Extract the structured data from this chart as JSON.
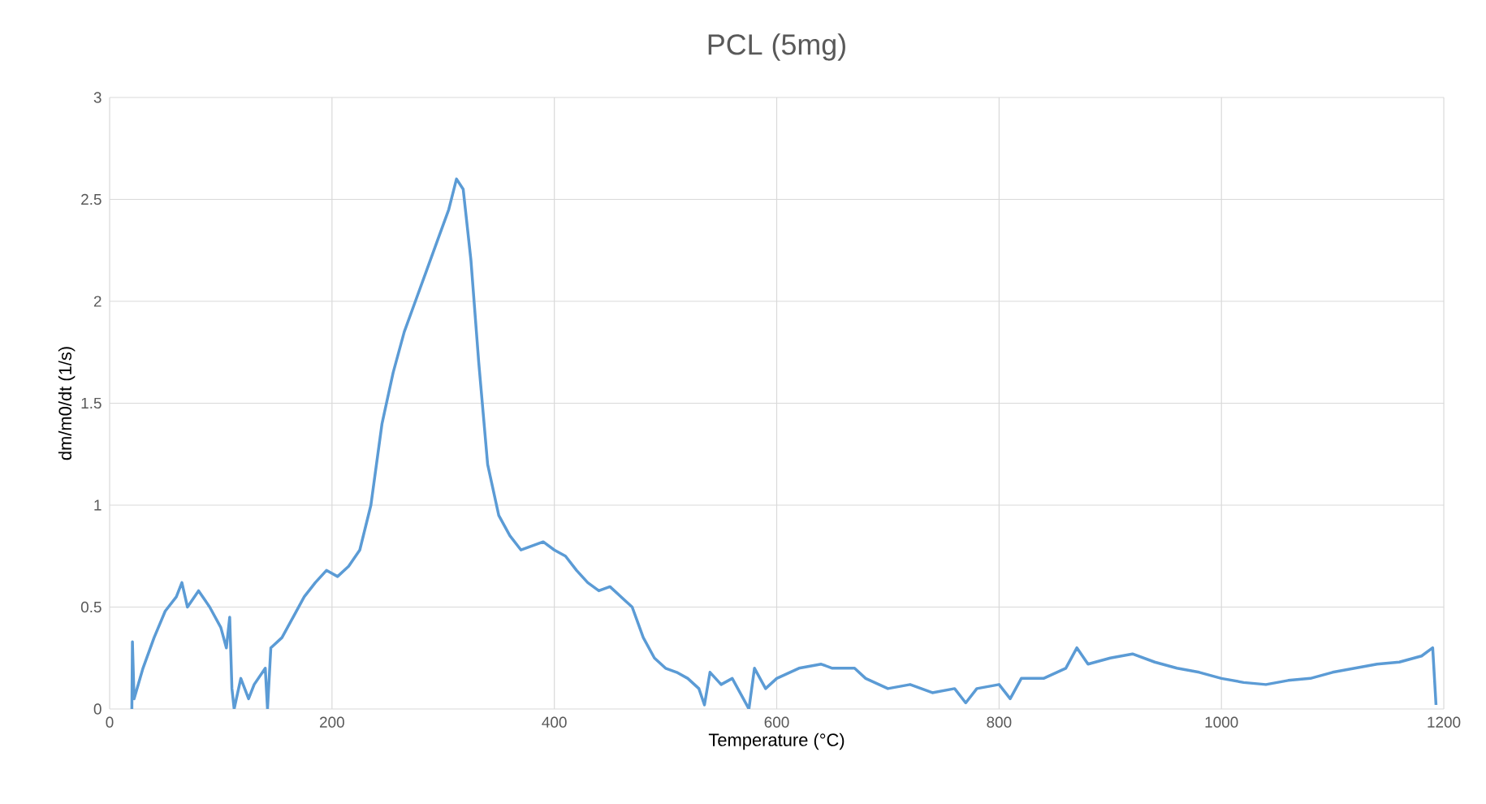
{
  "chart_data": {
    "type": "line",
    "title": "PCL (5mg)",
    "xlabel": "Temperature (°C)",
    "ylabel": "dm/m0/dt (1/s)",
    "x": [
      20,
      20.5,
      22,
      30,
      40,
      50,
      60,
      65,
      70,
      80,
      90,
      100,
      105,
      108,
      110,
      112,
      118,
      125,
      130,
      140,
      142,
      145,
      155,
      165,
      175,
      185,
      195,
      205,
      215,
      225,
      235,
      245,
      255,
      265,
      275,
      285,
      295,
      305,
      312,
      318,
      325,
      332,
      340,
      350,
      360,
      370,
      380,
      390,
      400,
      410,
      420,
      430,
      440,
      450,
      460,
      470,
      480,
      490,
      500,
      510,
      520,
      530,
      535,
      540,
      550,
      560,
      570,
      575,
      580,
      590,
      600,
      620,
      640,
      650,
      670,
      680,
      700,
      720,
      740,
      760,
      770,
      780,
      800,
      810,
      820,
      840,
      860,
      870,
      880,
      900,
      920,
      940,
      960,
      980,
      1000,
      1020,
      1040,
      1060,
      1080,
      1100,
      1120,
      1140,
      1160,
      1180,
      1190,
      1193
    ],
    "series": [
      {
        "color": "#5b9bd5",
        "values": [
          0.0,
          0.33,
          0.05,
          0.2,
          0.35,
          0.48,
          0.55,
          0.62,
          0.5,
          0.58,
          0.5,
          0.4,
          0.3,
          0.45,
          0.1,
          0.0,
          0.15,
          0.05,
          0.12,
          0.2,
          0.0,
          0.3,
          0.35,
          0.45,
          0.55,
          0.62,
          0.68,
          0.65,
          0.7,
          0.78,
          1.0,
          1.4,
          1.65,
          1.85,
          2.0,
          2.15,
          2.3,
          2.45,
          2.6,
          2.55,
          2.2,
          1.7,
          1.2,
          0.95,
          0.85,
          0.78,
          0.8,
          0.82,
          0.78,
          0.75,
          0.68,
          0.62,
          0.58,
          0.6,
          0.55,
          0.5,
          0.35,
          0.25,
          0.2,
          0.18,
          0.15,
          0.1,
          0.02,
          0.18,
          0.12,
          0.15,
          0.05,
          0.0,
          0.2,
          0.1,
          0.15,
          0.2,
          0.22,
          0.2,
          0.2,
          0.15,
          0.1,
          0.12,
          0.08,
          0.1,
          0.03,
          0.1,
          0.12,
          0.05,
          0.15,
          0.15,
          0.2,
          0.3,
          0.22,
          0.25,
          0.27,
          0.23,
          0.2,
          0.18,
          0.15,
          0.13,
          0.12,
          0.14,
          0.15,
          0.18,
          0.2,
          0.22,
          0.23,
          0.26,
          0.3,
          0.02
        ]
      }
    ],
    "xlim": [
      0,
      1200
    ],
    "ylim": [
      0,
      3
    ],
    "xticks": [
      0,
      200,
      400,
      600,
      800,
      1000,
      1200
    ],
    "yticks": [
      0,
      0.5,
      1,
      1.5,
      2,
      2.5,
      3
    ],
    "grid": true,
    "line_style": "solid"
  }
}
